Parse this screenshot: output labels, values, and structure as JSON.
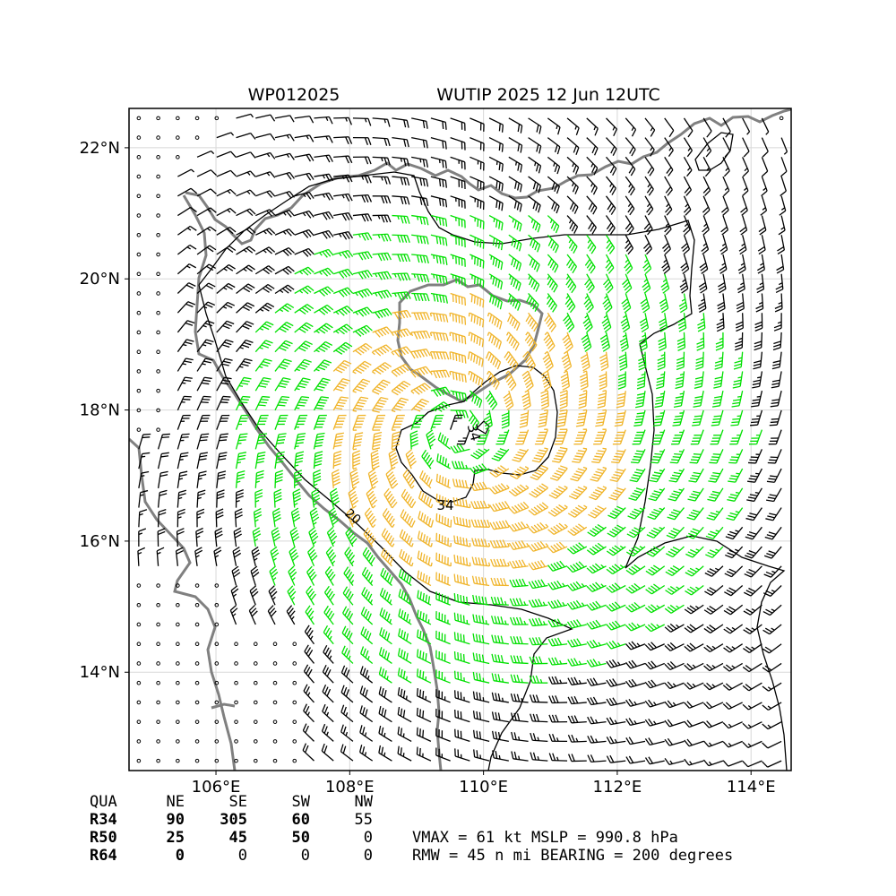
{
  "header": {
    "storm_id": "WP012025",
    "title": "WUTIP 2025 12 Jun 12UTC"
  },
  "axes": {
    "lon_range": [
      104.7,
      114.6
    ],
    "lat_range": [
      12.5,
      22.6
    ],
    "x_ticks": [
      {
        "value": 106,
        "label": "106°E"
      },
      {
        "value": 108,
        "label": "108°E"
      },
      {
        "value": 110,
        "label": "110°E"
      },
      {
        "value": 112,
        "label": "112°E"
      },
      {
        "value": 114,
        "label": "114°E"
      }
    ],
    "y_ticks": [
      {
        "value": 14,
        "label": "14°N"
      },
      {
        "value": 16,
        "label": "16°N"
      },
      {
        "value": 18,
        "label": "18°N"
      },
      {
        "value": 20,
        "label": "20°N"
      },
      {
        "value": 22,
        "label": "22°N"
      }
    ],
    "grid": true
  },
  "storm": {
    "center": [
      109.6,
      17.7
    ],
    "contour_labels": [
      {
        "text": "34",
        "lon": 109.55,
        "lat": 16.6
      },
      {
        "text": "34",
        "lon": 109.9,
        "lat": 17.65
      },
      {
        "text": "20",
        "lon": 107.65,
        "lat": 16.35
      }
    ]
  },
  "colors": {
    "coast": "#808080",
    "barb_calm": "#000000",
    "barb_34": "#00e000",
    "barb_50": "#f0b429",
    "barb_64": "#ff6600",
    "grid": "#d8d8d8"
  },
  "radii_table": {
    "headers": [
      "QUA",
      "NE",
      "SE",
      "SW",
      "NW"
    ],
    "rows": [
      {
        "label": "R34",
        "values": [
          "90",
          "305",
          "60",
          "55"
        ]
      },
      {
        "label": "R50",
        "values": [
          "25",
          "45",
          "50",
          "0"
        ]
      },
      {
        "label": "R64",
        "values": [
          "0",
          "0",
          "0",
          "0"
        ]
      }
    ]
  },
  "summary": {
    "line1": "VMAX =  61 kt MSLP = 990.8 hPa",
    "line2": "RMW =  45 n mi BEARING = 200 degrees"
  }
}
